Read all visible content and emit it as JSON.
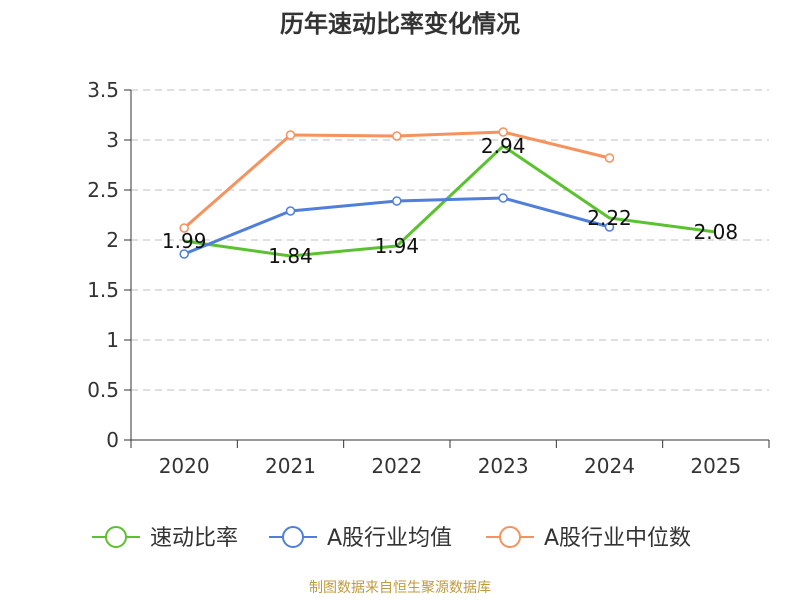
{
  "chart_data": {
    "type": "line",
    "title": "历年速动比率变化情况",
    "categories": [
      "2020",
      "2021",
      "2022",
      "2023",
      "2024",
      "2025"
    ],
    "ylim": [
      0,
      3.5
    ],
    "yticks": [
      "0",
      "0.5",
      "1",
      "1.5",
      "2",
      "2.5",
      "3",
      "3.5"
    ],
    "grid": true,
    "legend_position": "bottom",
    "series": [
      {
        "name": "速动比率",
        "color": "#5ac22e",
        "values": [
          1.99,
          1.84,
          1.94,
          2.94,
          2.22,
          2.08
        ],
        "labels": [
          "1.99",
          "1.84",
          "1.94",
          "2.94",
          "2.22",
          "2.08"
        ],
        "show_markers": false
      },
      {
        "name": "A股行业均值",
        "color": "#4f7fdb",
        "values": [
          1.86,
          2.29,
          2.39,
          2.42,
          2.13,
          null
        ],
        "show_markers": true
      },
      {
        "name": "A股行业中位数",
        "color": "#f5925e",
        "values": [
          2.12,
          3.05,
          3.04,
          3.08,
          2.82,
          null
        ],
        "show_markers": true
      }
    ],
    "source_note": "制图数据来自恒生聚源数据库"
  }
}
